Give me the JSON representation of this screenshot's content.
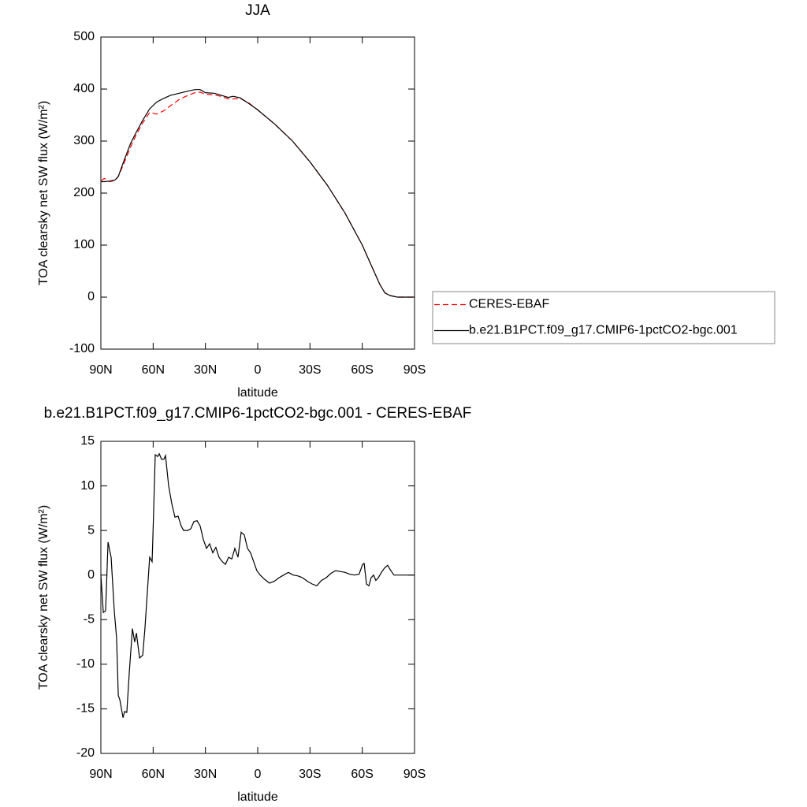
{
  "chart_data": [
    {
      "type": "line",
      "title": "JJA",
      "xlabel": "latitude",
      "ylabel": "TOA clearsky net SW flux (W/m²)",
      "x": [
        90,
        88,
        85,
        82,
        80,
        77,
        73,
        70,
        66,
        62,
        58,
        54,
        50,
        45,
        40,
        36,
        33,
        30,
        25,
        20,
        17,
        14,
        10,
        5,
        0,
        -10,
        -20,
        -30,
        -40,
        -50,
        -60,
        -66,
        -70,
        -73,
        -76,
        -80,
        -90
      ],
      "series": [
        {
          "name": "CERES-EBAF",
          "color": "#ff0000",
          "style": "dashed",
          "values": [
            224,
            228,
            222,
            224,
            232,
            255,
            288,
            310,
            335,
            355,
            352,
            358,
            368,
            380,
            388,
            393,
            394,
            390,
            389,
            385,
            381,
            381,
            382,
            373,
            360,
            332,
            300,
            260,
            215,
            162,
            100,
            55,
            25,
            8,
            3,
            0,
            0
          ]
        },
        {
          "name": "b.e21.B1PCT.f09_g17.CMIP6-1pctCO2-bgc.001",
          "color": "#000000",
          "style": "solid",
          "values": [
            222,
            222,
            223,
            225,
            232,
            260,
            295,
            315,
            340,
            362,
            375,
            382,
            388,
            392,
            396,
            399,
            399,
            393,
            392,
            387,
            384,
            386,
            383,
            372,
            360,
            332,
            300,
            260,
            215,
            162,
            100,
            55,
            25,
            8,
            3,
            0,
            0
          ]
        }
      ],
      "xlim": [
        90,
        -90
      ],
      "xticks": [
        {
          "value": 90,
          "label": "90N"
        },
        {
          "value": 60,
          "label": "60N"
        },
        {
          "value": 30,
          "label": "30N"
        },
        0,
        {
          "value": -30,
          "label": "30S"
        },
        {
          "value": -60,
          "label": "60S"
        },
        {
          "value": -90,
          "label": "90S"
        }
      ],
      "ylim": [
        -100,
        500
      ],
      "yticks": [
        -100,
        0,
        100,
        200,
        300,
        400,
        500
      ],
      "legend": "right"
    },
    {
      "type": "line",
      "title": "b.e21.B1PCT.f09_g17.CMIP6-1pctCO2-bgc.001 - CERES-EBAF",
      "xlabel": "latitude",
      "ylabel": "TOA clearsky net SW flux (W/m²)",
      "x": [
        90,
        88.6,
        87.3,
        85.9,
        84.1,
        82.3,
        81,
        80,
        79.1,
        77.3,
        76.4,
        75.1,
        73.7,
        71.9,
        70.6,
        69.6,
        67.8,
        66,
        64.7,
        62,
        60.6,
        60.2,
        58.8,
        57.4,
        56.5,
        55.2,
        53.8,
        52.9,
        51.1,
        49.3,
        47.5,
        45.7,
        43.9,
        42.5,
        40.2,
        38.4,
        36.6,
        34.8,
        33,
        31.2,
        29.4,
        27.6,
        25.8,
        24,
        22.2,
        20.3,
        18.5,
        16.7,
        14.9,
        13.1,
        11.3,
        9.5,
        7.7,
        5.9,
        4.1,
        2.3,
        0.5,
        -1.4,
        -4.1,
        -6.8,
        -9.5,
        -12.2,
        -14.9,
        -17.6,
        -20.4,
        -23.1,
        -25.8,
        -28.5,
        -31.2,
        -33.9,
        -36.6,
        -39.3,
        -42,
        -44.7,
        -47.4,
        -50.1,
        -52.8,
        -55.5,
        -58.2,
        -60.2,
        -61.1,
        -62.4,
        -63.8,
        -65.1,
        -66.5,
        -67.8,
        -69.2,
        -71,
        -72.8,
        -74.6,
        -76.4,
        -78.2,
        -90
      ],
      "values": [
        0,
        -4.2,
        -4,
        3.7,
        2,
        -4,
        -7,
        -13.5,
        -14,
        -16,
        -15.3,
        -15.4,
        -11,
        -6,
        -7.5,
        -6.5,
        -9.3,
        -9,
        -6,
        2,
        1.5,
        4,
        13.5,
        13.3,
        13.6,
        13,
        13,
        13.4,
        10,
        8,
        6.5,
        6.6,
        5.5,
        5,
        5,
        5.2,
        6,
        6.1,
        5.5,
        4,
        3,
        3.5,
        2.5,
        3.1,
        2,
        1.5,
        1.2,
        2,
        1.8,
        3,
        2,
        4.8,
        4.5,
        3,
        2.5,
        1.5,
        0.5,
        0,
        -0.5,
        -0.9,
        -0.7,
        -0.3,
        0,
        0.3,
        0,
        -0.1,
        -0.3,
        -0.7,
        -1,
        -1.2,
        -0.6,
        -0.3,
        0.2,
        0.5,
        0.4,
        0.3,
        0.1,
        0,
        0.1,
        1.2,
        1.3,
        -1,
        -1.2,
        -0.3,
        0,
        -0.6,
        -0.3,
        0.3,
        0.8,
        1.1,
        0.5,
        0,
        0
      ],
      "color": "#000000",
      "xlim": [
        90,
        -90
      ],
      "xticks": [
        {
          "value": 90,
          "label": "90N"
        },
        {
          "value": 60,
          "label": "60N"
        },
        {
          "value": 30,
          "label": "30N"
        },
        0,
        {
          "value": -30,
          "label": "30S"
        },
        {
          "value": -60,
          "label": "60S"
        },
        {
          "value": -90,
          "label": "90S"
        }
      ],
      "ylim": [
        -20,
        15
      ],
      "yticks": [
        -20,
        -15,
        -10,
        -5,
        0,
        5,
        10,
        15
      ]
    }
  ]
}
